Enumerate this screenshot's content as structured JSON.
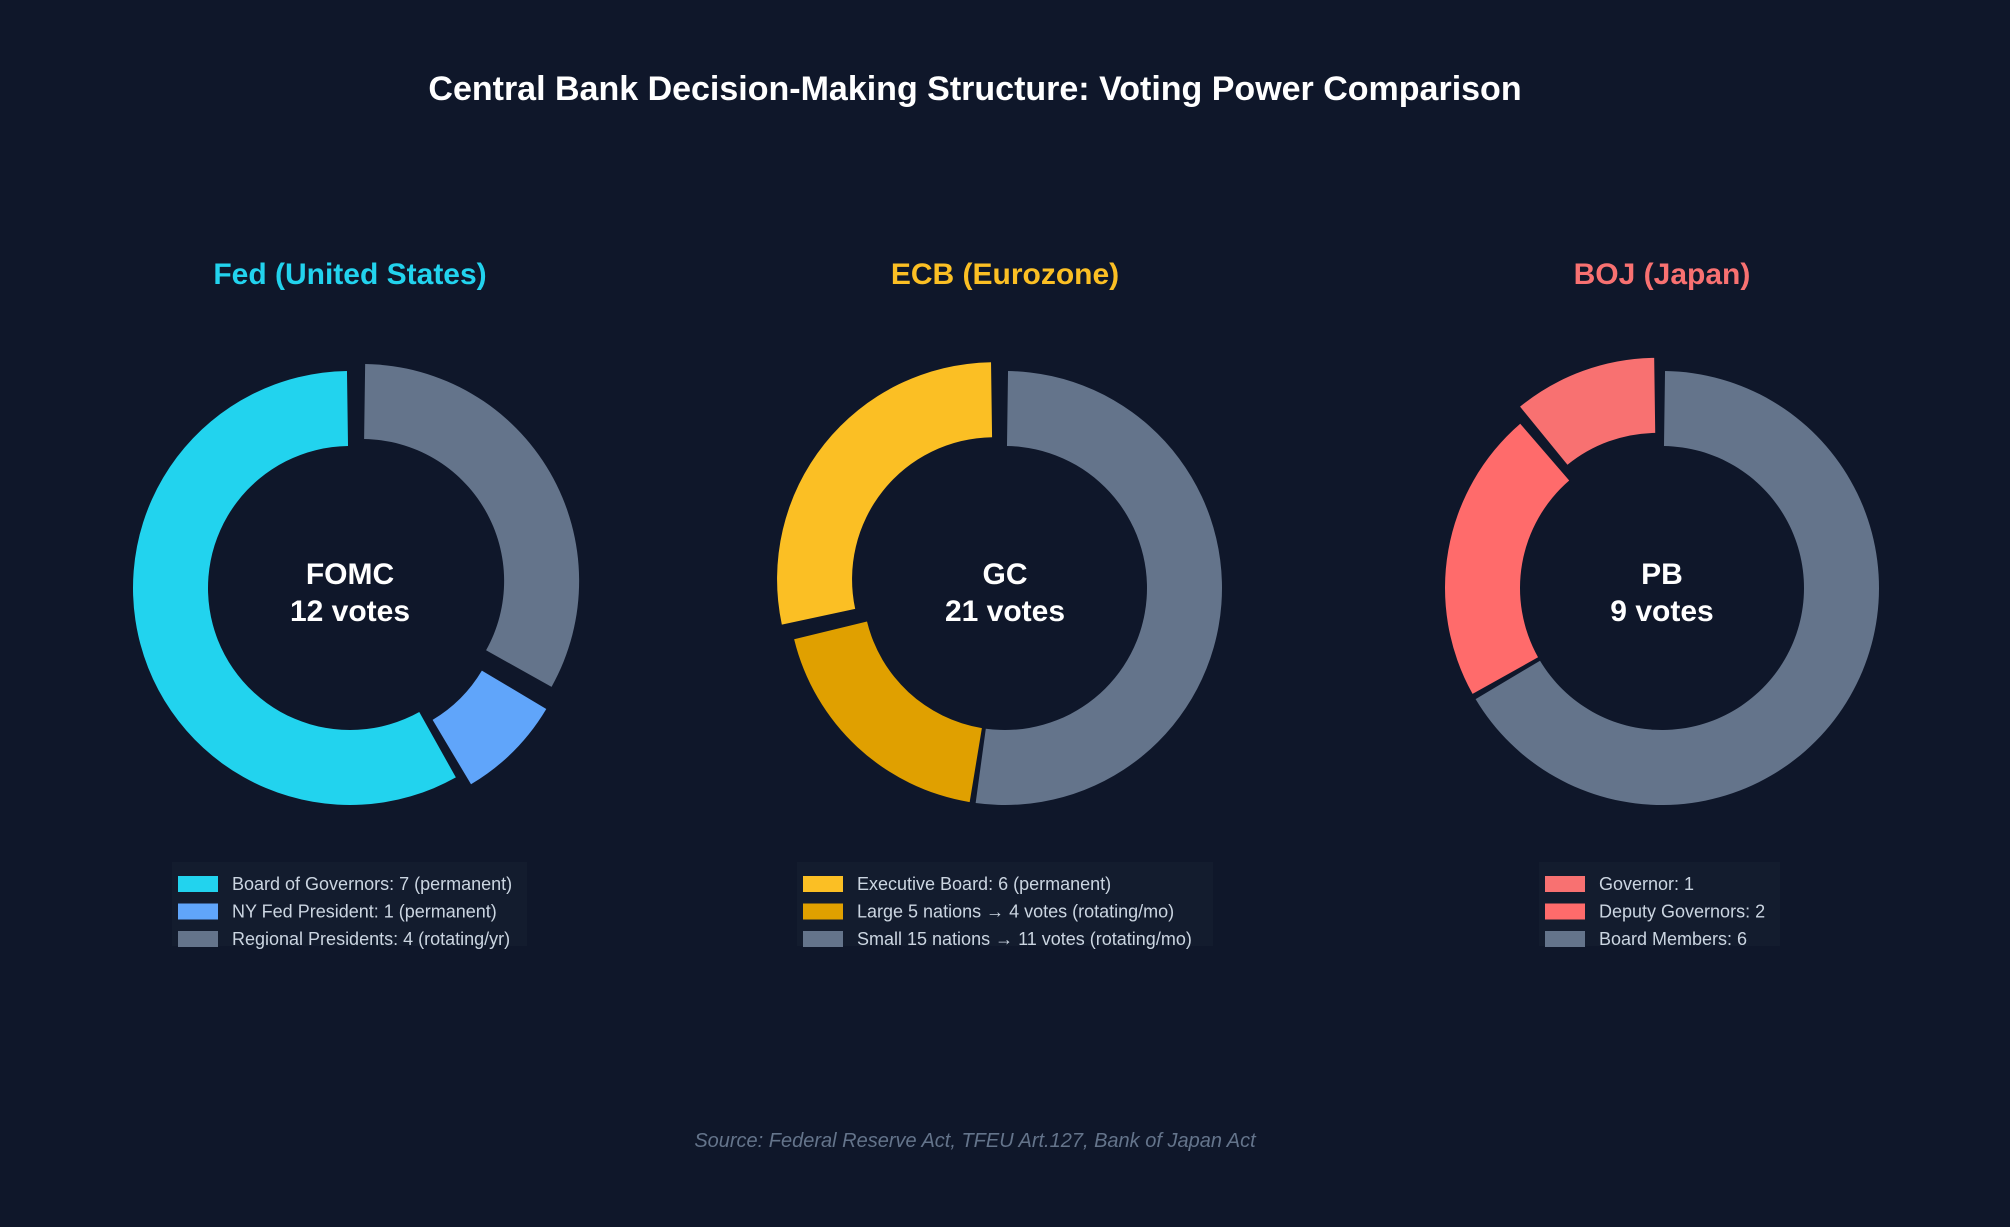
{
  "title": "Central Bank Decision-Making Structure: Voting Power Comparison",
  "source": "Source: Federal Reserve Act, TFEU Art.127, Bank of Japan Act",
  "chart_data": [
    {
      "type": "pie",
      "style": "donut",
      "title": "Fed (United States)",
      "title_color": "#22d3ee",
      "center_label": "FOMC",
      "center_sublabel": "12 votes",
      "slices": [
        {
          "label": "Board of Governors: 7 (permanent)",
          "value": 7,
          "color": "#22d3ee",
          "exploded": false
        },
        {
          "label": "NY Fed President: 1 (permanent)",
          "value": 1,
          "color": "#60a5fa",
          "exploded": true
        },
        {
          "label": "Regional Presidents: 4 (rotating/yr)",
          "value": 4,
          "color": "#64748b",
          "exploded": true
        }
      ]
    },
    {
      "type": "pie",
      "style": "donut",
      "title": "ECB (Eurozone)",
      "title_color": "#fbbf24",
      "center_label": "GC",
      "center_sublabel": "21 votes",
      "slices": [
        {
          "label": "Executive Board: 6 (permanent)",
          "value": 6,
          "color": "#fbbf24",
          "exploded": true
        },
        {
          "label": "Large 5 nations → 4 votes (rotating/mo)",
          "value": 4,
          "color": "#e0a000",
          "exploded": false
        },
        {
          "label": "Small 15 nations → 11 votes (rotating/mo)",
          "value": 11,
          "color": "#64748b",
          "exploded": false
        }
      ]
    },
    {
      "type": "pie",
      "style": "donut",
      "title": "BOJ (Japan)",
      "title_color": "#f87171",
      "center_label": "PB",
      "center_sublabel": "9 votes",
      "slices": [
        {
          "label": "Governor: 1",
          "value": 1,
          "color": "#f87171",
          "exploded": true
        },
        {
          "label": "Deputy Governors: 2",
          "value": 2,
          "color": "#ff6b6b",
          "exploded": false
        },
        {
          "label": "Board Members: 6",
          "value": 6,
          "color": "#64748b",
          "exploded": false
        }
      ]
    }
  ]
}
